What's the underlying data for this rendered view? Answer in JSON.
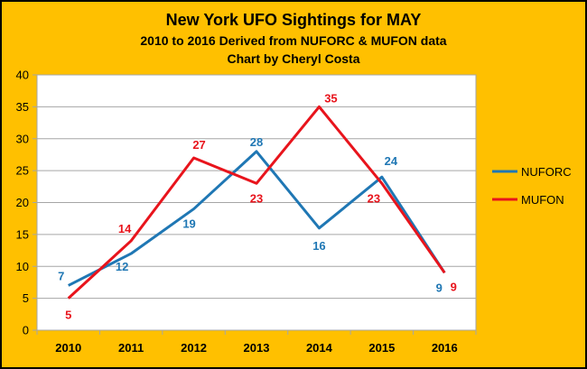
{
  "chart_data": {
    "type": "line",
    "title": "New York UFO Sightings for MAY",
    "subtitle": "2010 to 2016  Derived from NUFORC & MUFON data",
    "credit": "Chart by Cheryl Costa",
    "categories": [
      "2010",
      "2011",
      "2012",
      "2013",
      "2014",
      "2015",
      "2016"
    ],
    "y_ticks": [
      0,
      5,
      10,
      15,
      20,
      25,
      30,
      35,
      40
    ],
    "ylim": [
      0,
      40
    ],
    "grid": "horizontal",
    "legend_position": "right",
    "series": [
      {
        "name": "NUFORC",
        "color": "#1F77B4",
        "values": [
          7,
          12,
          19,
          28,
          16,
          24,
          9
        ]
      },
      {
        "name": "MUFON",
        "color": "#E8141C",
        "values": [
          5,
          14,
          27,
          23,
          35,
          23,
          9
        ]
      }
    ],
    "colors": {
      "background": "#FFC000",
      "plot_background": "#FFFFFF",
      "grid": "#A6A6A6",
      "border": "#000000"
    }
  }
}
